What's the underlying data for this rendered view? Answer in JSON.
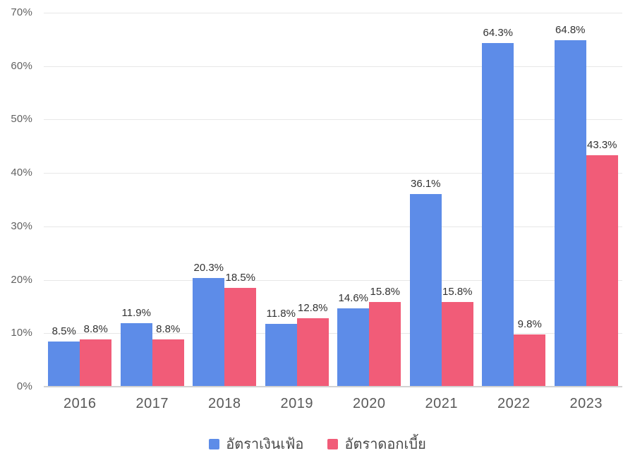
{
  "chart_data": {
    "type": "bar",
    "title": "",
    "xlabel": "",
    "ylabel": "",
    "categories": [
      "2016",
      "2017",
      "2018",
      "2019",
      "2020",
      "2021",
      "2022",
      "2023"
    ],
    "series": [
      {
        "name": "อัตราเงินเฟ้อ",
        "color": "#5D8CE8",
        "values": [
          8.5,
          11.9,
          20.3,
          11.8,
          14.6,
          36.1,
          64.3,
          64.8
        ],
        "value_labels": [
          "8.5%",
          "11.9%",
          "20.3%",
          "11.8%",
          "14.6%",
          "36.1%",
          "64.3%",
          "64.8%"
        ]
      },
      {
        "name": "อัตราดอกเบี้ย",
        "color": "#F15C78",
        "values": [
          8.8,
          8.8,
          18.5,
          12.8,
          15.8,
          15.8,
          9.8,
          43.3
        ],
        "value_labels": [
          "8.8%",
          "8.8%",
          "18.5%",
          "12.8%",
          "15.8%",
          "15.8%",
          "9.8%",
          "43.3%"
        ]
      }
    ],
    "ylim": [
      0,
      70
    ],
    "yticks": [
      0,
      10,
      20,
      30,
      40,
      50,
      60,
      70
    ],
    "ytick_labels": [
      "0%",
      "10%",
      "20%",
      "30%",
      "40%",
      "50%",
      "60%",
      "70%"
    ],
    "grid": true,
    "legend_position": "bottom",
    "value_labels_shown": true
  },
  "colors": {
    "background": "#FFFFFF",
    "gridline": "#E7E7E7",
    "baseline": "#D2D2D2",
    "axis_text": "#616161",
    "category_text": "#595959",
    "value_label_text": "#323232",
    "legend_text": "#4A4A4A"
  }
}
